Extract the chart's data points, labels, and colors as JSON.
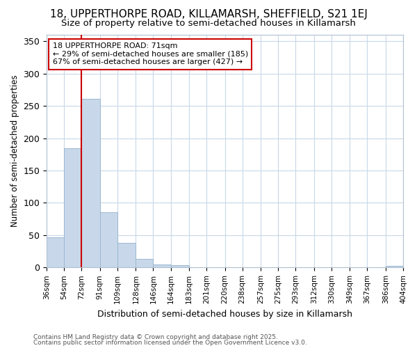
{
  "title": "18, UPPERTHORPE ROAD, KILLAMARSH, SHEFFIELD, S21 1EJ",
  "subtitle": "Size of property relative to semi-detached houses in Killamarsh",
  "xlabel": "Distribution of semi-detached houses by size in Killamarsh",
  "ylabel": "Number of semi-detached properties",
  "annotation_title": "18 UPPERTHORPE ROAD: 71sqm",
  "annotation_line1": "← 29% of semi-detached houses are smaller (185)",
  "annotation_line2": "67% of semi-detached houses are larger (427) →",
  "footer1": "Contains HM Land Registry data © Crown copyright and database right 2025.",
  "footer2": "Contains public sector information licensed under the Open Government Licence v3.0.",
  "property_size": 71,
  "bar_edges": [
    36,
    54,
    72,
    91,
    109,
    128,
    146,
    164,
    183,
    201,
    220,
    238,
    257,
    275,
    293,
    312,
    330,
    349,
    367,
    386,
    404
  ],
  "bar_labels": [
    "36sqm",
    "54sqm",
    "72sqm",
    "91sqm",
    "109sqm",
    "128sqm",
    "146sqm",
    "164sqm",
    "183sqm",
    "201sqm",
    "220sqm",
    "238sqm",
    "257sqm",
    "275sqm",
    "293sqm",
    "312sqm",
    "330sqm",
    "349sqm",
    "367sqm",
    "386sqm",
    "404sqm"
  ],
  "bar_values": [
    47,
    185,
    261,
    85,
    38,
    13,
    5,
    4,
    0,
    0,
    0,
    0,
    0,
    0,
    0,
    0,
    0,
    0,
    0,
    3
  ],
  "bar_color": "#c8d8ea",
  "bar_edgecolor": "#9ab8d0",
  "vline_color": "#cc0000",
  "vline_x": 72,
  "ylim": [
    0,
    360
  ],
  "yticks": [
    0,
    50,
    100,
    150,
    200,
    250,
    300,
    350
  ],
  "bg_color": "#ffffff",
  "plot_bg_color": "#ffffff",
  "grid_color": "#c8d8e8",
  "title_fontsize": 11,
  "subtitle_fontsize": 9.5,
  "annotation_fontsize": 8,
  "footer_fontsize": 6.5
}
